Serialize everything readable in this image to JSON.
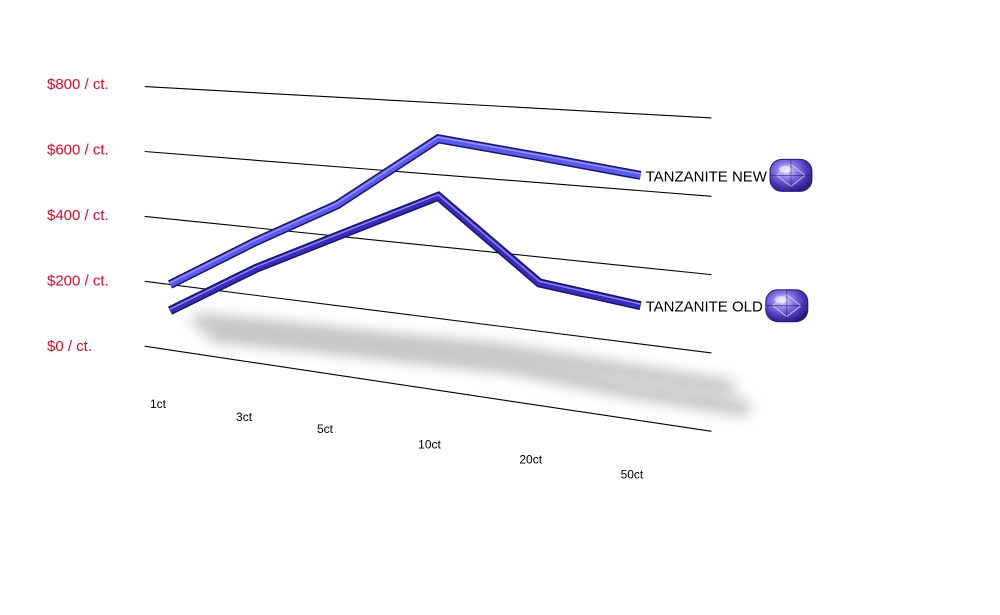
{
  "chart_data": {
    "type": "line",
    "title": "",
    "xlabel": "",
    "ylabel": "",
    "categories": [
      "1ct",
      "3ct",
      "5ct",
      "10ct",
      "20ct",
      "50ct"
    ],
    "y_ticks": [
      "$0  / ct.",
      "$200 / ct.",
      "$400 / ct.",
      "$600 / ct.",
      "$800  / ct."
    ],
    "ylim": [
      0,
      800
    ],
    "grid": true,
    "legend": "inline-right",
    "series": [
      {
        "name": "TANZANITE NEW",
        "values": [
          200,
          360,
          490,
          700,
          670,
          640
        ],
        "color": "#5a5be8"
      },
      {
        "name": "TANZANITE OLD",
        "values": [
          120,
          280,
          400,
          540,
          330,
          300
        ],
        "color": "#3b2bb8"
      }
    ],
    "colors": {
      "tick_label": "#c8102e",
      "gridline": "#000000",
      "shadow": "#b8b8b8",
      "gem_light": "#c9c3ff",
      "gem_dark": "#3a2a9a"
    },
    "icons": [
      "gem-icon"
    ]
  }
}
